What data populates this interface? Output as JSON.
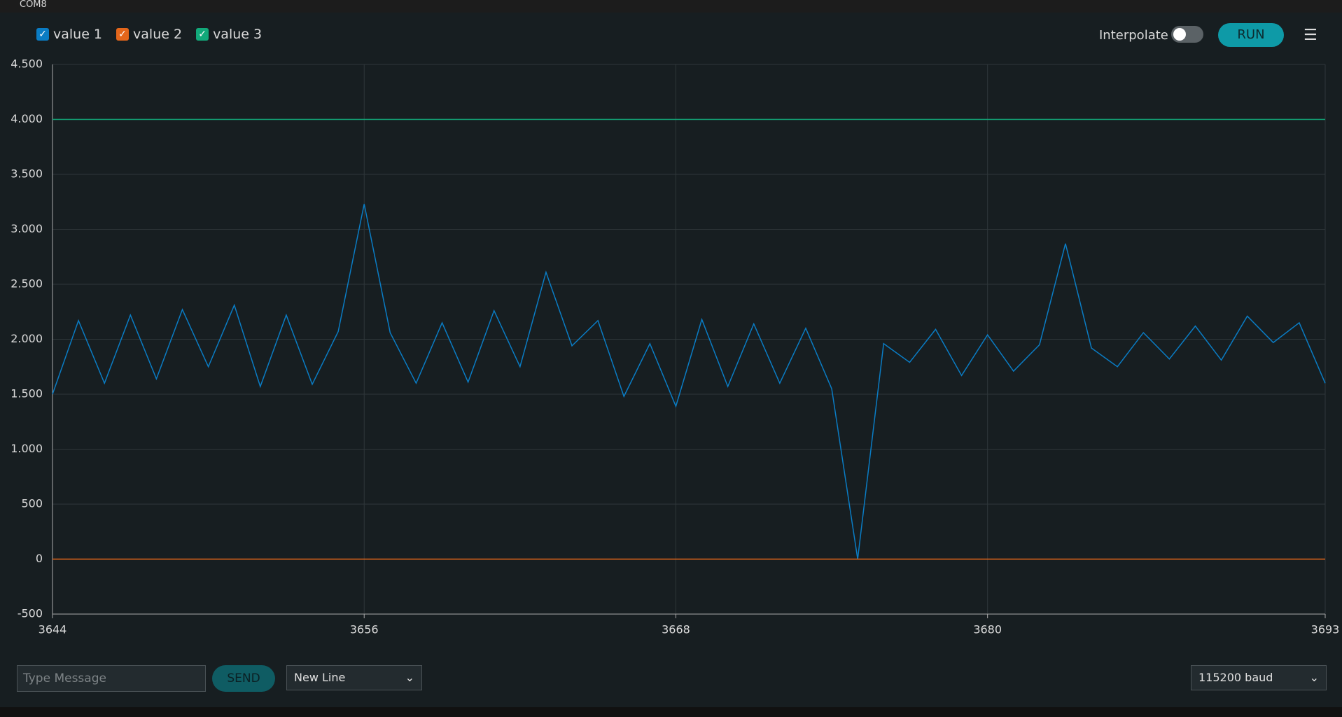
{
  "window": {
    "title": "COM8"
  },
  "chart_data": {
    "type": "line",
    "x": [
      3644,
      3645,
      3646,
      3647,
      3648,
      3649,
      3650,
      3651,
      3652,
      3653,
      3654,
      3655,
      3656,
      3657,
      3658,
      3659,
      3660,
      3661,
      3662,
      3663,
      3664,
      3665,
      3666,
      3667,
      3668,
      3669,
      3670,
      3671,
      3672,
      3673,
      3674,
      3675,
      3676,
      3677,
      3678,
      3679,
      3680,
      3681,
      3682,
      3683,
      3684,
      3685,
      3686,
      3687,
      3688,
      3689,
      3690,
      3691,
      3692,
      3693
    ],
    "series": [
      {
        "name": "value 1",
        "color": "#0a7cc4",
        "values": [
          1500,
          2170,
          1600,
          2220,
          1640,
          2270,
          1750,
          2310,
          1570,
          2220,
          1590,
          2070,
          3230,
          2060,
          1600,
          2150,
          1610,
          2260,
          1750,
          2610,
          1940,
          2170,
          1480,
          1960,
          1390,
          2180,
          1570,
          2140,
          1600,
          2100,
          1550,
          0,
          1960,
          1790,
          2090,
          1670,
          2040,
          1710,
          1950,
          2870,
          1920,
          1750,
          2060,
          1820,
          2120,
          1810,
          2210,
          1970,
          2150,
          1600
        ]
      },
      {
        "name": "value 2",
        "color": "#e3661b",
        "values": [
          0,
          0,
          0,
          0,
          0,
          0,
          0,
          0,
          0,
          0,
          0,
          0,
          0,
          0,
          0,
          0,
          0,
          0,
          0,
          0,
          0,
          0,
          0,
          0,
          0,
          0,
          0,
          0,
          0,
          0,
          0,
          0,
          0,
          0,
          0,
          0,
          0,
          0,
          0,
          0,
          0,
          0,
          0,
          0,
          0,
          0,
          0,
          0,
          0,
          0
        ]
      },
      {
        "name": "value 3",
        "color": "#12a97a",
        "values": [
          4000,
          4000,
          4000,
          4000,
          4000,
          4000,
          4000,
          4000,
          4000,
          4000,
          4000,
          4000,
          4000,
          4000,
          4000,
          4000,
          4000,
          4000,
          4000,
          4000,
          4000,
          4000,
          4000,
          4000,
          4000,
          4000,
          4000,
          4000,
          4000,
          4000,
          4000,
          4000,
          4000,
          4000,
          4000,
          4000,
          4000,
          4000,
          4000,
          4000,
          4000,
          4000,
          4000,
          4000,
          4000,
          4000,
          4000,
          4000,
          4000,
          4000
        ]
      }
    ],
    "xlim": [
      3644,
      3693
    ],
    "xticks": [
      3644,
      3656,
      3668,
      3680,
      3693
    ],
    "ylim": [
      -500,
      4500
    ],
    "yticks": [
      -500,
      0,
      500,
      {
        "value": 1000,
        "label": "1.000"
      },
      {
        "value": 1500,
        "label": "1.500"
      },
      {
        "value": 2000,
        "label": "2.000"
      },
      {
        "value": 2500,
        "label": "2.500"
      },
      {
        "value": 3000,
        "label": "3.000"
      },
      {
        "value": 3500,
        "label": "3.500"
      },
      {
        "value": 4000,
        "label": "4.000"
      },
      {
        "value": 4500,
        "label": "4.500"
      }
    ],
    "grid": true
  },
  "controls": {
    "interpolate": "Interpolate",
    "run": "RUN",
    "message_placeholder": "Type Message",
    "send": "SEND",
    "line_ending": "New Line",
    "baud": "115200 baud"
  }
}
